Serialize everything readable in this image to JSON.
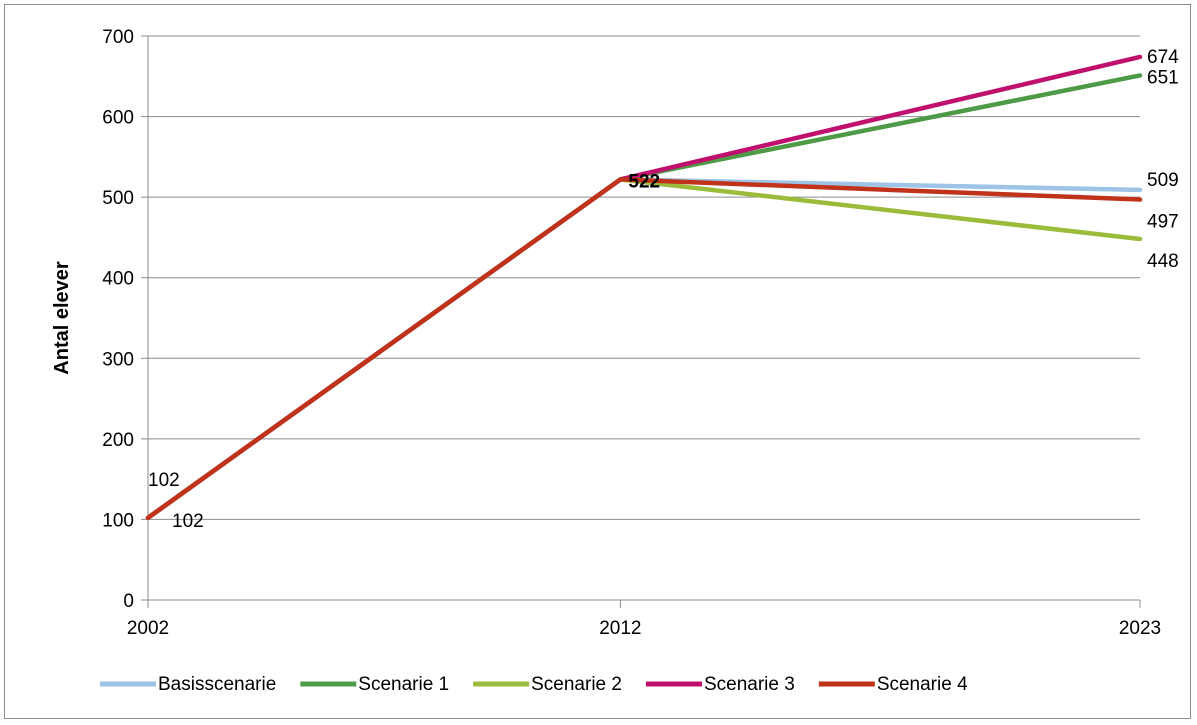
{
  "chart_data": {
    "type": "line",
    "title": "",
    "xlabel": "",
    "ylabel": "Antal elever",
    "x": [
      "2002",
      "2012",
      "2023"
    ],
    "ylim": [
      0,
      700
    ],
    "yticks": [
      0,
      100,
      200,
      300,
      400,
      500,
      600,
      700
    ],
    "grid": true,
    "legend_position": "bottom",
    "series": [
      {
        "name": "Basisscenarie",
        "color": "#9dc3e6",
        "values": [
          102,
          522,
          509
        ]
      },
      {
        "name": "Scenarie 1",
        "color": "#4f9a47",
        "values": [
          102,
          522,
          651
        ]
      },
      {
        "name": "Scenarie 2",
        "color": "#9bbb3b",
        "values": [
          102,
          522,
          448
        ]
      },
      {
        "name": "Scenarie 3",
        "color": "#c0106e",
        "values": [
          102,
          522,
          674
        ]
      },
      {
        "name": "Scenarie 4",
        "color": "#c0321a",
        "values": [
          102,
          522,
          497
        ]
      }
    ],
    "data_labels": [
      {
        "text": "102",
        "x": "2002",
        "y": 102,
        "pos": "above"
      },
      {
        "text": "102",
        "x": "2002",
        "y": 102,
        "pos": "right"
      },
      {
        "text": "522",
        "x": "2012",
        "y": 522,
        "pos": "right"
      },
      {
        "text": "674",
        "x": "2023",
        "y": 674,
        "pos": "right"
      },
      {
        "text": "651",
        "x": "2023",
        "y": 651,
        "pos": "right"
      },
      {
        "text": "509",
        "x": "2023",
        "y": 509,
        "pos": "right"
      },
      {
        "text": "497",
        "x": "2023",
        "y": 497,
        "pos": "right"
      },
      {
        "text": "448",
        "x": "2023",
        "y": 448,
        "pos": "right"
      }
    ]
  }
}
